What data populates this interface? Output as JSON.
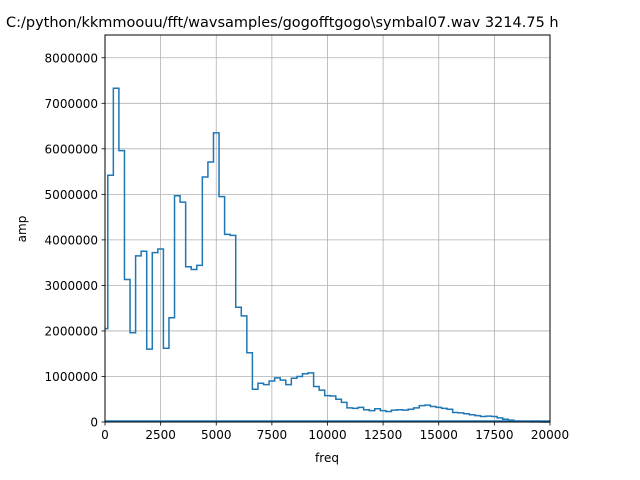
{
  "chart_data": {
    "type": "line",
    "step": true,
    "title": "C:/python/kkmmoouu/fft/wavsamples/gogofftgogo\\symbal07.wav 3214.75 h",
    "xlabel": "freq",
    "ylabel": "amp",
    "xlim": [
      0,
      20000
    ],
    "ylim": [
      0,
      8500000
    ],
    "grid": true,
    "xticks": [
      "0",
      "2500",
      "5000",
      "7500",
      "10000",
      "12500",
      "15000",
      "17500",
      "20000"
    ],
    "xtick_values": [
      0,
      2500,
      5000,
      7500,
      10000,
      12500,
      15000,
      17500,
      20000
    ],
    "yticks": [
      "0",
      "1000000",
      "2000000",
      "3000000",
      "4000000",
      "5000000",
      "6000000",
      "7000000",
      "8000000"
    ],
    "ytick_values": [
      0,
      1000000,
      2000000,
      3000000,
      4000000,
      5000000,
      6000000,
      7000000,
      8000000
    ],
    "color": "#1f77b4",
    "series": [
      {
        "x": [
          0,
          250,
          500,
          750,
          1000,
          1250,
          1500,
          1750,
          2000,
          2250,
          2500,
          2750,
          3000,
          3250,
          3500,
          3750,
          4000,
          4250,
          4500,
          4750,
          5000,
          5250,
          5500,
          5750,
          6000,
          6250,
          6500,
          6750,
          7000,
          7250,
          7500,
          7750,
          8000,
          8250,
          8500,
          8750,
          9000,
          9250,
          9500,
          9750,
          10000,
          10250,
          10500,
          10750,
          11000,
          11250,
          11500,
          11750,
          12000,
          12250,
          12500,
          12750,
          13000,
          13250,
          13500,
          13750,
          14000,
          14250,
          14500,
          14750,
          15000,
          15250,
          15500,
          15750,
          16000,
          16250,
          16500,
          16750,
          17000,
          17250,
          17500,
          17750,
          18000,
          18250,
          18500,
          18750,
          19000,
          19250,
          19500,
          19750,
          20000
        ],
        "values": [
          2050000,
          5420000,
          7330000,
          5960000,
          3130000,
          1960000,
          3650000,
          3750000,
          1600000,
          3720000,
          3800000,
          1620000,
          2290000,
          4970000,
          4830000,
          3410000,
          3350000,
          3440000,
          5380000,
          5710000,
          6350000,
          4950000,
          4120000,
          4100000,
          2520000,
          2330000,
          1520000,
          720000,
          850000,
          820000,
          900000,
          970000,
          920000,
          820000,
          960000,
          1000000,
          1060000,
          1080000,
          780000,
          700000,
          580000,
          570000,
          500000,
          430000,
          310000,
          300000,
          320000,
          270000,
          250000,
          290000,
          250000,
          230000,
          260000,
          270000,
          260000,
          280000,
          310000,
          360000,
          370000,
          340000,
          320000,
          300000,
          280000,
          210000,
          200000,
          180000,
          160000,
          140000,
          120000,
          130000,
          120000,
          90000,
          60000,
          40000,
          20000,
          10000,
          5000,
          3000,
          2000,
          1000,
          1000
        ]
      }
    ]
  }
}
